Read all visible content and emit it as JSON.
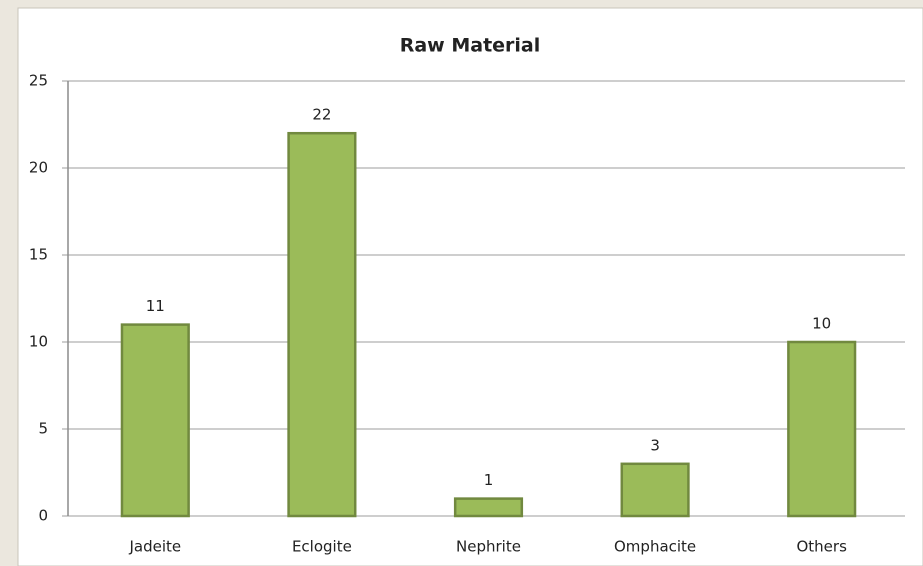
{
  "chart_data": {
    "type": "bar",
    "title": "Raw Material",
    "categories": [
      "Jadeite",
      "Eclogite",
      "Nephrite",
      "Omphacite",
      "Others"
    ],
    "values": [
      11,
      22,
      1,
      3,
      10
    ],
    "color": "#9bbb59",
    "ylim": [
      0,
      25
    ],
    "yticks": [
      0,
      5,
      10,
      15,
      20,
      25
    ],
    "grid": true
  }
}
